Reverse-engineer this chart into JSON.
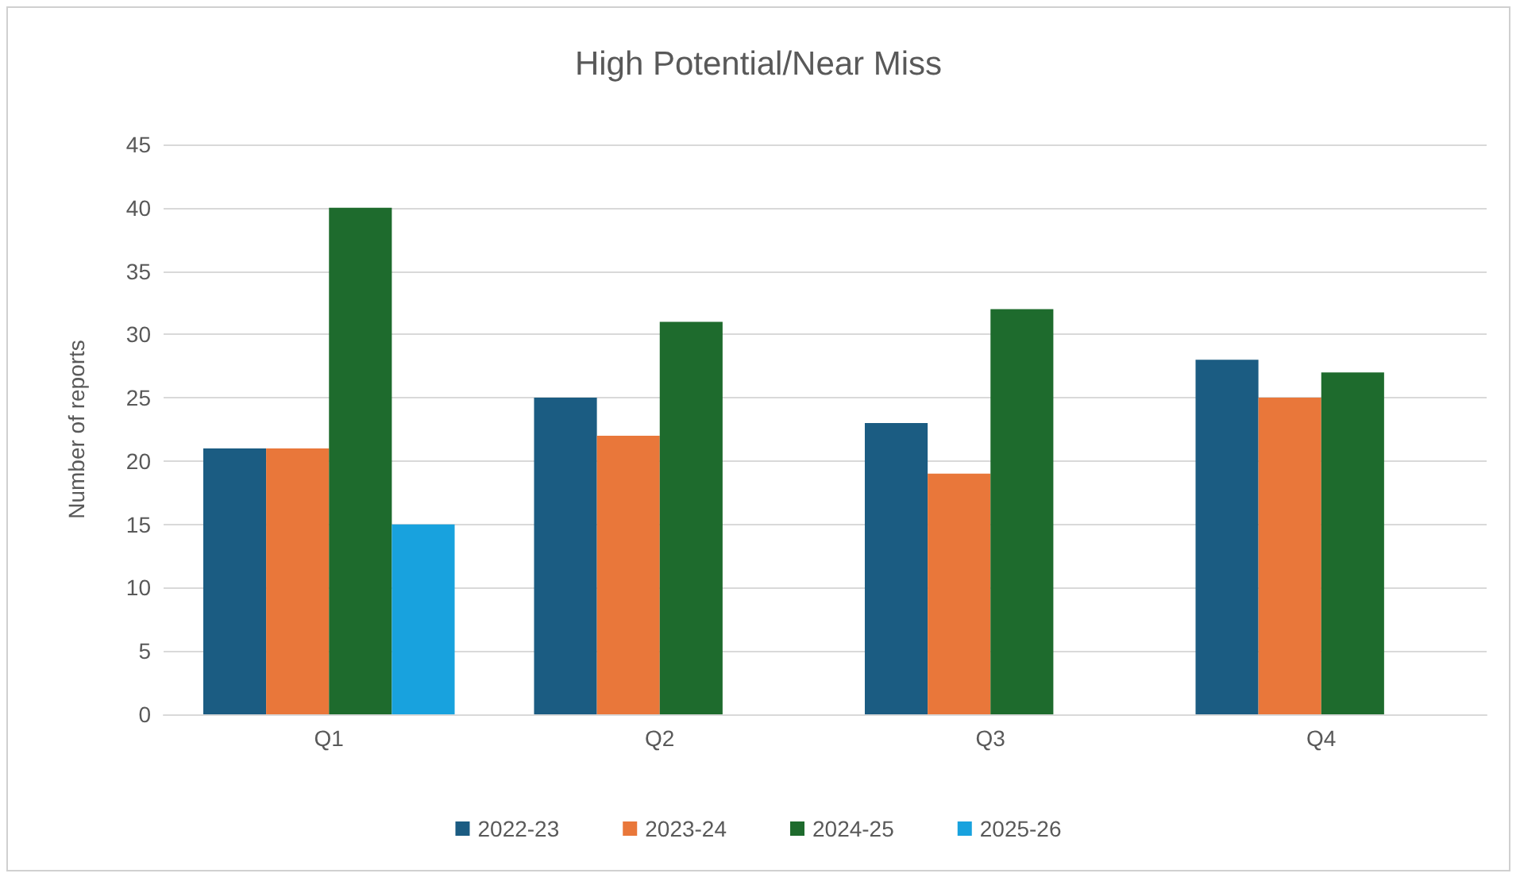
{
  "chart_data": {
    "type": "bar",
    "title": "High Potential/Near Miss",
    "ylabel": "Number of reports",
    "categories": [
      "Q1",
      "Q2",
      "Q3",
      "Q4"
    ],
    "series": [
      {
        "name": "2022-23",
        "color": "#1b5c82",
        "values": [
          21,
          25,
          23,
          28
        ]
      },
      {
        "name": "2023-24",
        "color": "#e9773a",
        "values": [
          21,
          22,
          19,
          25
        ]
      },
      {
        "name": "2024-25",
        "color": "#1e6b2d",
        "values": [
          40,
          31,
          32,
          27
        ]
      },
      {
        "name": "2025-26",
        "color": "#18a2de",
        "values": [
          15,
          null,
          null,
          null
        ]
      }
    ],
    "ylim": [
      0,
      45
    ],
    "yticks": [
      0,
      5,
      10,
      15,
      20,
      25,
      30,
      35,
      40,
      45
    ],
    "grid": "y",
    "legend": "bottom"
  }
}
